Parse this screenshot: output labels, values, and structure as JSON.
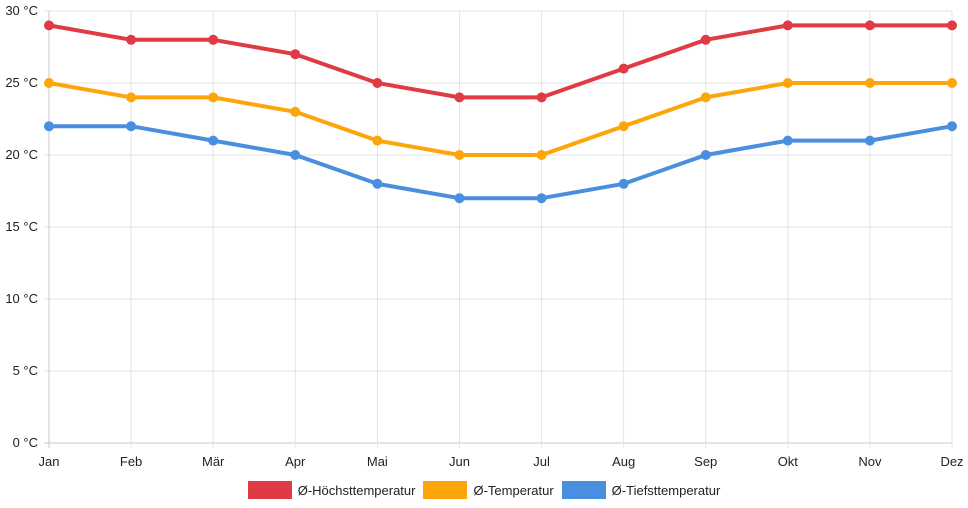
{
  "chart_data": {
    "type": "line",
    "title": "",
    "xlabel": "",
    "ylabel": "",
    "categories": [
      "Jan",
      "Feb",
      "Mär",
      "Apr",
      "Mai",
      "Jun",
      "Jul",
      "Aug",
      "Sep",
      "Okt",
      "Nov",
      "Dez"
    ],
    "ylim": [
      0,
      30
    ],
    "yticks": [
      0,
      5,
      10,
      15,
      20,
      25,
      30
    ],
    "ytick_labels": [
      "0 °C",
      "5 °C",
      "10 °C",
      "15 °C",
      "20 °C",
      "25 °C",
      "30 °C"
    ],
    "grid": true,
    "legend_position": "bottom",
    "series": [
      {
        "name": "Ø-Höchsttemperatur",
        "color": "#e03a45",
        "values": [
          29,
          28,
          28,
          27,
          25,
          24,
          24,
          26,
          28,
          29,
          29,
          29
        ]
      },
      {
        "name": "Ø-Temperatur",
        "color": "#fca60c",
        "values": [
          25,
          24,
          24,
          23,
          21,
          20,
          20,
          22,
          24,
          25,
          25,
          25
        ]
      },
      {
        "name": "Ø-Tiefsttemperatur",
        "color": "#4a8fdf",
        "values": [
          22,
          22,
          21,
          20,
          18,
          17,
          17,
          18,
          20,
          21,
          21,
          22
        ]
      }
    ]
  }
}
